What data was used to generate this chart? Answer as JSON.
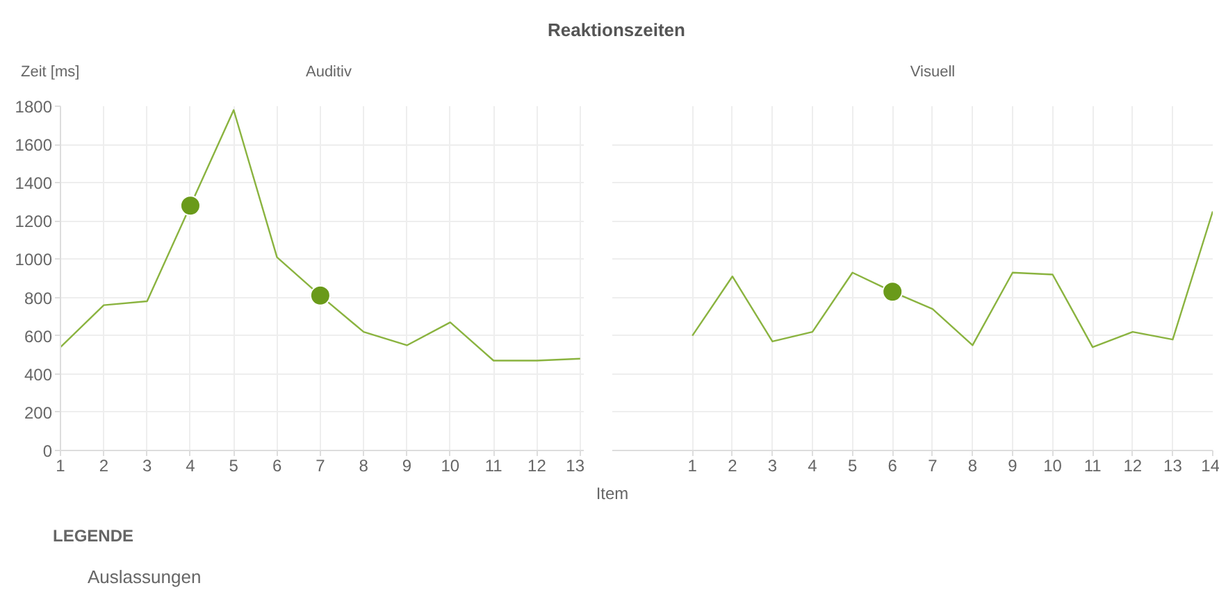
{
  "chart_data": [
    {
      "type": "line",
      "title": "Reaktionszeiten",
      "subtitle": "Auditiv",
      "ylabel": "Zeit [ms]",
      "legend_title": "LEGENDE",
      "legend": "bottom",
      "grid": true,
      "x": [
        1,
        2,
        3,
        4,
        5,
        6,
        7,
        8,
        9,
        10,
        11,
        12,
        13
      ],
      "xlim": [
        1,
        13.1
      ],
      "xticks": [
        1,
        2,
        3,
        4,
        5,
        6,
        7,
        8,
        9,
        10,
        11,
        12,
        13
      ],
      "ylim": [
        0,
        1800
      ],
      "yticks": [
        0,
        200,
        400,
        600,
        800,
        1000,
        1200,
        1400,
        1600,
        1800
      ],
      "series": [
        {
          "marker": "none",
          "color": "#8ab33f",
          "values": [
            540,
            760,
            780,
            1280,
            1780,
            1010,
            810,
            620,
            550,
            670,
            470,
            470,
            480
          ]
        },
        {
          "type": "scatter",
          "marker": "circle",
          "name": "Auslassungen",
          "color": "#6a9a1a",
          "values": [
            null,
            null,
            null,
            1280,
            null,
            null,
            810,
            null,
            null,
            null,
            null,
            null,
            null
          ]
        }
      ]
    },
    {
      "type": "line",
      "subtitle": "Visuell",
      "xlabel": "Item",
      "grid": true,
      "tick_labels": "x",
      "x": [
        1,
        2,
        3,
        4,
        5,
        6,
        7,
        8,
        9,
        10,
        11,
        12,
        13,
        14
      ],
      "xlim": [
        -1,
        14
      ],
      "xticks": [
        1,
        2,
        3,
        4,
        5,
        6,
        7,
        8,
        9,
        10,
        11,
        12,
        13,
        14
      ],
      "ylim": [
        0,
        1800
      ],
      "yticks": [
        0,
        200,
        400,
        600,
        800,
        1000,
        1200,
        1400,
        1600,
        1800
      ],
      "series": [
        {
          "marker": "none",
          "color": "#8ab33f",
          "values": [
            600,
            910,
            570,
            620,
            930,
            830,
            740,
            550,
            930,
            920,
            540,
            620,
            580,
            1250
          ]
        },
        {
          "type": "scatter",
          "marker": "circle",
          "color": "#6a9a1a",
          "values": [
            null,
            null,
            null,
            null,
            null,
            830,
            null,
            null,
            null,
            null,
            null,
            null,
            null,
            null
          ]
        }
      ]
    }
  ]
}
